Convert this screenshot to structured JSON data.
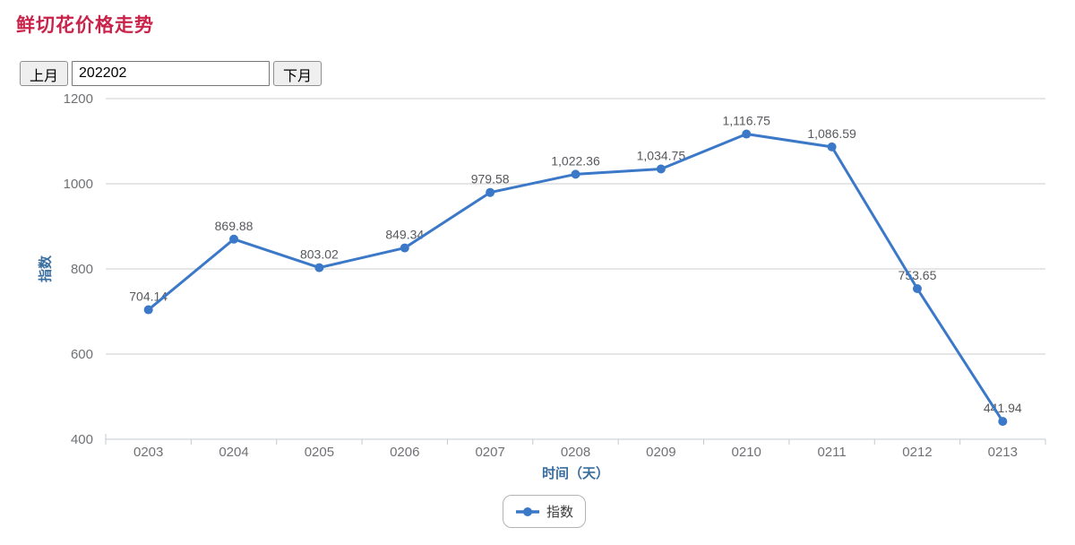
{
  "page": {
    "title": "鲜切花价格走势"
  },
  "controls": {
    "prev_month_label": "上月",
    "next_month_label": "下月",
    "month_value": "202202"
  },
  "chart_data": {
    "type": "line",
    "categories": [
      "0203",
      "0204",
      "0205",
      "0206",
      "0207",
      "0208",
      "0209",
      "0210",
      "0211",
      "0212",
      "0213"
    ],
    "series": [
      {
        "name": "指数",
        "values": [
          704.14,
          869.88,
          803.02,
          849.34,
          979.58,
          1022.36,
          1034.75,
          1116.75,
          1086.59,
          753.65,
          441.94
        ],
        "labels": [
          "704.14",
          "869.88",
          "803.02",
          "849.34",
          "979.58",
          "1,022.36",
          "1,034.75",
          "1,116.75",
          "1,086.59",
          "753.65",
          "441.94"
        ]
      }
    ],
    "xlabel": "时间（天）",
    "ylabel": "指数",
    "ylim": [
      400,
      1200
    ],
    "yticks": [
      400,
      600,
      800,
      1000,
      1200
    ],
    "grid": true,
    "legend_position": "bottom"
  },
  "colors": {
    "series_line": "#3b79c8",
    "grid_line": "#cccccc",
    "axis_line": "#c3cad0",
    "tick_text": "#6f7175",
    "data_label_text": "#57585c",
    "axis_title_text": "#3a6e9f",
    "page_title_text": "#c9234a"
  }
}
